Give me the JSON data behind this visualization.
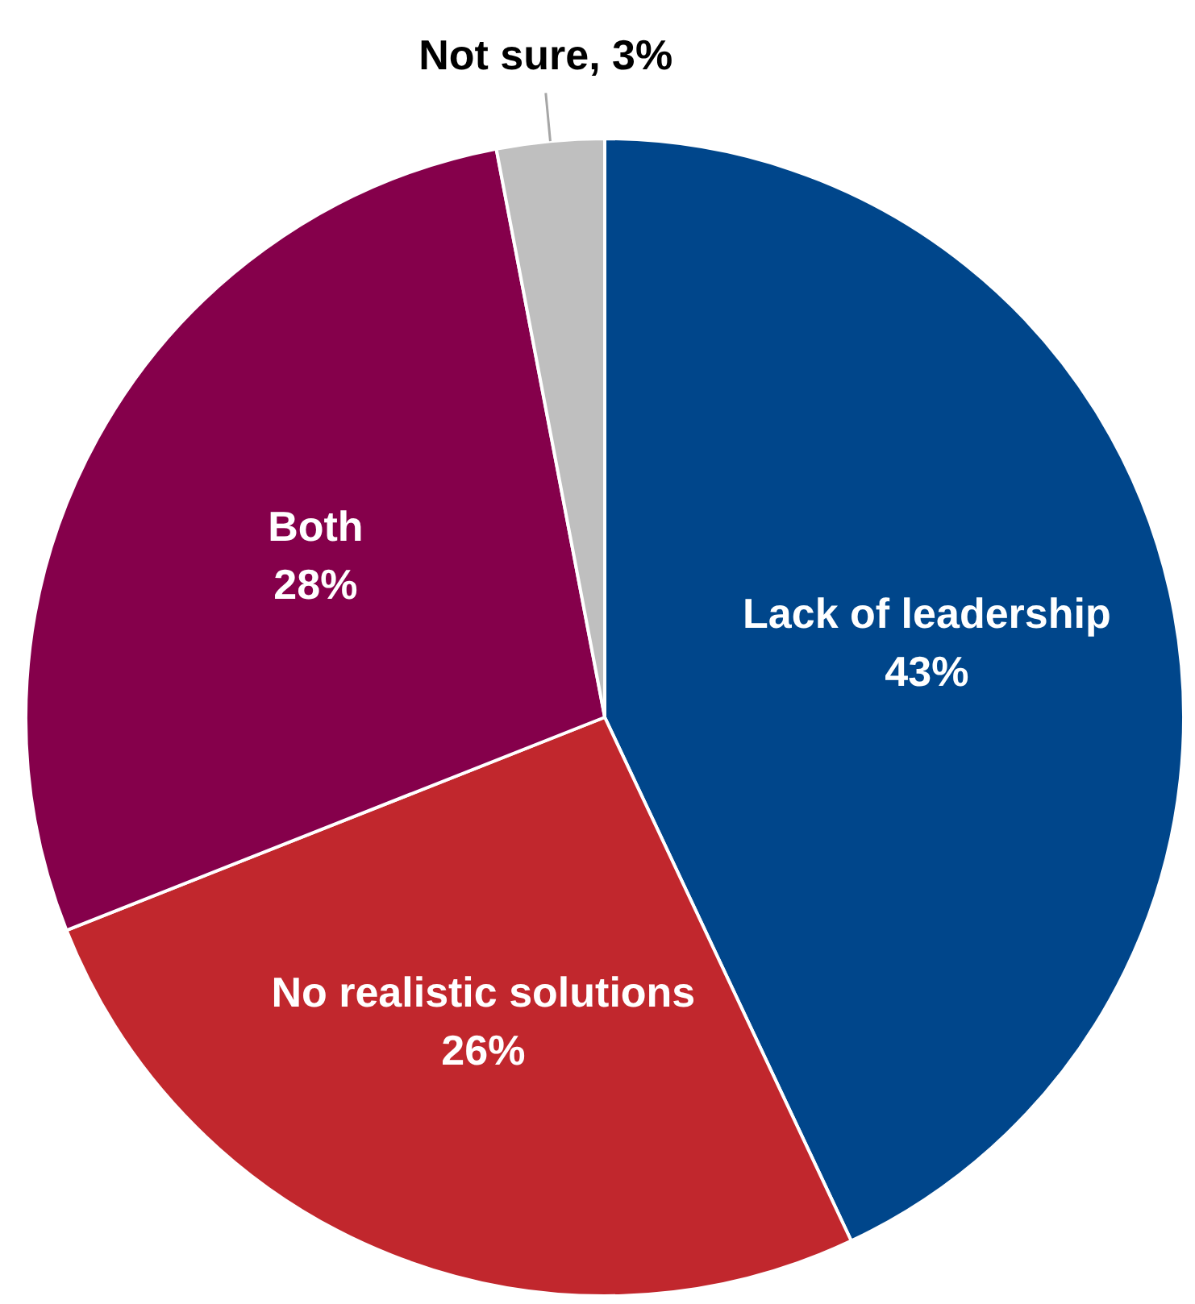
{
  "chart_data": {
    "type": "pie",
    "categories": [
      "Lack of leadership",
      "No realistic solutions",
      "Both",
      "Not sure"
    ],
    "values": [
      43,
      26,
      28,
      3
    ],
    "colors": [
      "#00468b",
      "#c1272d",
      "#85004b",
      "#bfbfbf"
    ],
    "value_labels": [
      "43%",
      "26%",
      "28%",
      "3%"
    ],
    "legend": false
  }
}
